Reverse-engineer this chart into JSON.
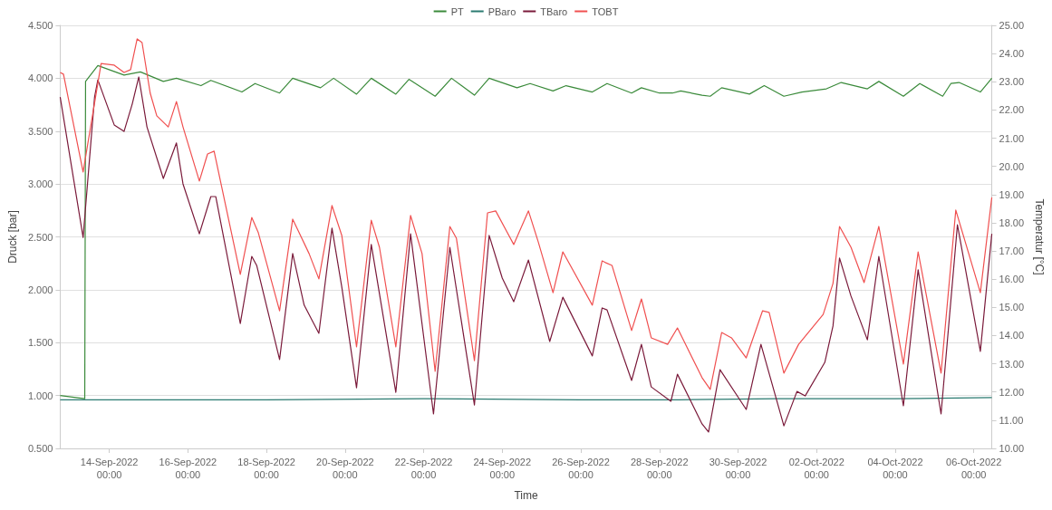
{
  "chart_data": {
    "type": "line",
    "xlabel": "Time",
    "ylabel": "Druck [bar]",
    "y2label": "Temperatur [°C]",
    "legend": "top",
    "grid": "y",
    "marker": "none",
    "line_style": "solid",
    "xlim": [
      "2022-09-12T18:00",
      "2022-10-06T11:00"
    ],
    "xticks": [
      {
        "value": "2022-09-14T00:00",
        "label": "14-Sep-2022 00:00"
      },
      {
        "value": "2022-09-16T00:00",
        "label": "16-Sep-2022 00:00"
      },
      {
        "value": "2022-09-18T00:00",
        "label": "18-Sep-2022 00:00"
      },
      {
        "value": "2022-09-20T00:00",
        "label": "20-Sep-2022 00:00"
      },
      {
        "value": "2022-09-22T00:00",
        "label": "22-Sep-2022 00:00"
      },
      {
        "value": "2022-09-24T00:00",
        "label": "24-Sep-2022 00:00"
      },
      {
        "value": "2022-09-26T00:00",
        "label": "26-Sep-2022 00:00"
      },
      {
        "value": "2022-09-28T00:00",
        "label": "28-Sep-2022 00:00"
      },
      {
        "value": "2022-09-30T00:00",
        "label": "30-Sep-2022 00:00"
      },
      {
        "value": "2022-10-02T00:00",
        "label": "02-Oct-2022 00:00"
      },
      {
        "value": "2022-10-04T00:00",
        "label": "04-Oct-2022 00:00"
      },
      {
        "value": "2022-10-06T00:00",
        "label": "06-Oct-2022 00:00"
      }
    ],
    "ylim": [
      0.5,
      4.5
    ],
    "yticks": [
      {
        "value": 0.5,
        "label": "0.500"
      },
      {
        "value": 1,
        "label": "1.000"
      },
      {
        "value": 1.5,
        "label": "1.500"
      },
      {
        "value": 2,
        "label": "2.000"
      },
      {
        "value": 2.5,
        "label": "2.500"
      },
      {
        "value": 3,
        "label": "3.000"
      },
      {
        "value": 3.5,
        "label": "3.500"
      },
      {
        "value": 4,
        "label": "4.000"
      },
      {
        "value": 4.5,
        "label": "4.500"
      }
    ],
    "y2lim": [
      10,
      25
    ],
    "y2ticks": [
      {
        "value": 10,
        "label": "10.00"
      },
      {
        "value": 11,
        "label": "11.00"
      },
      {
        "value": 12,
        "label": "12.00"
      },
      {
        "value": 13,
        "label": "13.00"
      },
      {
        "value": 14,
        "label": "14.00"
      },
      {
        "value": 15,
        "label": "15.00"
      },
      {
        "value": 16,
        "label": "16.00"
      },
      {
        "value": 17,
        "label": "17.00"
      },
      {
        "value": 18,
        "label": "18.00"
      },
      {
        "value": 19,
        "label": "19.00"
      },
      {
        "value": 20,
        "label": "20.00"
      },
      {
        "value": 21,
        "label": "21.00"
      },
      {
        "value": 22,
        "label": "22.00"
      },
      {
        "value": 23,
        "label": "23.00"
      },
      {
        "value": 24,
        "label": "24.00"
      },
      {
        "value": 25,
        "label": "25.00"
      }
    ],
    "series": [
      {
        "name": "PT",
        "color": "#3a8a3a",
        "x": [
          "2022-09-12T18:00",
          "2022-09-13T09:00",
          "2022-09-13T09:30",
          "2022-09-13T17:00",
          "2022-09-14T09:00",
          "2022-09-14T19:00",
          "2022-09-15T09:00",
          "2022-09-15T17:00",
          "2022-09-16T08:00",
          "2022-09-16T14:00",
          "2022-09-17T09:00",
          "2022-09-17T17:00",
          "2022-09-18T08:00",
          "2022-09-18T16:00",
          "2022-09-19T09:00",
          "2022-09-19T17:00",
          "2022-09-20T07:00",
          "2022-09-20T16:00",
          "2022-09-21T07:00",
          "2022-09-21T15:00",
          "2022-09-22T07:00",
          "2022-09-22T17:00",
          "2022-09-23T07:00",
          "2022-09-23T16:00",
          "2022-09-24T09:00",
          "2022-09-24T17:00",
          "2022-09-25T07:00",
          "2022-09-25T15:00",
          "2022-09-26T07:00",
          "2022-09-26T16:00",
          "2022-09-27T07:00",
          "2022-09-27T13:00",
          "2022-09-28T00:00",
          "2022-09-28T08:00",
          "2022-09-28T13:00",
          "2022-09-29T02:00",
          "2022-09-29T07:00",
          "2022-09-29T14:00",
          "2022-09-30T07:00",
          "2022-09-30T16:00",
          "2022-10-01T04:00",
          "2022-10-01T15:00",
          "2022-10-02T06:00",
          "2022-10-02T15:00",
          "2022-10-03T07:00",
          "2022-10-03T14:00",
          "2022-10-04T05:00",
          "2022-10-04T15:00",
          "2022-10-05T05:00",
          "2022-10-05T10:00",
          "2022-10-05T15:00",
          "2022-10-06T04:00",
          "2022-10-06T11:00"
        ],
        "values": [
          1.0,
          0.97,
          3.97,
          4.12,
          4.03,
          4.06,
          3.97,
          4.0,
          3.93,
          3.98,
          3.87,
          3.95,
          3.86,
          4.0,
          3.91,
          4.0,
          3.85,
          4.0,
          3.85,
          3.99,
          3.83,
          4.0,
          3.84,
          4.0,
          3.91,
          3.95,
          3.88,
          3.93,
          3.87,
          3.95,
          3.86,
          3.91,
          3.86,
          3.86,
          3.88,
          3.84,
          3.83,
          3.91,
          3.85,
          3.93,
          3.83,
          3.87,
          3.9,
          3.96,
          3.9,
          3.97,
          3.83,
          3.95,
          3.83,
          3.95,
          3.96,
          3.87,
          4.0
        ]
      },
      {
        "name": "PBaro",
        "color": "#2a7a70",
        "x": [
          "2022-09-12T18:00",
          "2022-09-14T18:00",
          "2022-09-18T00:00",
          "2022-09-22T00:00",
          "2022-09-26T00:00",
          "2022-09-28T12:00",
          "2022-10-01T00:00",
          "2022-10-04T00:00",
          "2022-10-06T11:00"
        ],
        "values": [
          0.96,
          0.96,
          0.96,
          0.97,
          0.96,
          0.96,
          0.97,
          0.97,
          0.98
        ]
      },
      {
        "name": "TBaro",
        "color": "#7a1a3a",
        "axis": "y2",
        "x": [
          "2022-09-12T18:00",
          "2022-09-13T08:00",
          "2022-09-13T15:00",
          "2022-09-13T17:00",
          "2022-09-14T03:00",
          "2022-09-14T09:00",
          "2022-09-14T14:00",
          "2022-09-14T18:00",
          "2022-09-14T23:00",
          "2022-09-15T09:00",
          "2022-09-15T17:00",
          "2022-09-15T21:00",
          "2022-09-16T07:00",
          "2022-09-16T14:00",
          "2022-09-16T17:00",
          "2022-09-17T08:00",
          "2022-09-17T15:00",
          "2022-09-17T18:00",
          "2022-09-18T08:00",
          "2022-09-18T16:00",
          "2022-09-18T23:00",
          "2022-09-19T08:00",
          "2022-09-19T16:00",
          "2022-09-19T22:00",
          "2022-09-20T07:00",
          "2022-09-20T16:00",
          "2022-09-21T07:00",
          "2022-09-21T16:00",
          "2022-09-22T06:00",
          "2022-09-22T16:00",
          "2022-09-23T07:00",
          "2022-09-23T16:00",
          "2022-09-24T00:00",
          "2022-09-24T07:00",
          "2022-09-24T16:00",
          "2022-09-25T05:00",
          "2022-09-25T13:00",
          "2022-09-26T07:00",
          "2022-09-26T13:00",
          "2022-09-26T16:00",
          "2022-09-27T07:00",
          "2022-09-27T13:00",
          "2022-09-27T19:00",
          "2022-09-28T07:00",
          "2022-09-28T11:00",
          "2022-09-29T02:00",
          "2022-09-29T06:00",
          "2022-09-29T13:00",
          "2022-09-30T05:00",
          "2022-09-30T14:00",
          "2022-10-01T04:00",
          "2022-10-01T12:00",
          "2022-10-01T17:00",
          "2022-10-02T05:00",
          "2022-10-02T10:00",
          "2022-10-02T14:00",
          "2022-10-02T21:00",
          "2022-10-03T07:00",
          "2022-10-03T14:00",
          "2022-10-04T05:00",
          "2022-10-04T14:00",
          "2022-10-05T04:00",
          "2022-10-05T14:00",
          "2022-10-06T04:00",
          "2022-10-06T11:00"
        ],
        "values": [
          22.46,
          17.48,
          22.46,
          23.07,
          21.47,
          21.24,
          22.21,
          23.17,
          21.4,
          19.57,
          20.83,
          19.38,
          17.61,
          18.93,
          18.93,
          14.43,
          16.81,
          16.49,
          13.15,
          16.91,
          15.08,
          14.08,
          17.81,
          15.72,
          12.15,
          17.23,
          11.99,
          17.61,
          11.22,
          17.13,
          11.54,
          17.55,
          16.04,
          15.2,
          16.68,
          13.79,
          15.36,
          13.28,
          14.98,
          14.91,
          12.41,
          13.69,
          12.18,
          11.67,
          12.63,
          10.87,
          10.58,
          12.79,
          11.38,
          13.69,
          10.8,
          12.02,
          11.86,
          13.05,
          14.34,
          16.75,
          15.4,
          13.85,
          16.81,
          11.51,
          16.33,
          11.22,
          17.93,
          13.44,
          17.61
        ]
      },
      {
        "name": "TOBT",
        "color": "#f05050",
        "axis": "y2",
        "x": [
          "2022-09-12T18:00",
          "2022-09-12T20:00",
          "2022-09-13T08:00",
          "2022-09-13T19:00",
          "2022-09-14T03:00",
          "2022-09-14T09:00",
          "2022-09-14T13:00",
          "2022-09-14T17:00",
          "2022-09-14T20:00",
          "2022-09-15T01:00",
          "2022-09-15T05:00",
          "2022-09-15T12:00",
          "2022-09-15T17:00",
          "2022-09-15T21:00",
          "2022-09-16T07:00",
          "2022-09-16T12:00",
          "2022-09-16T16:00",
          "2022-09-17T08:00",
          "2022-09-17T15:00",
          "2022-09-17T19:00",
          "2022-09-18T08:00",
          "2022-09-18T16:00",
          "2022-09-19T02:00",
          "2022-09-19T08:00",
          "2022-09-19T16:00",
          "2022-09-19T22:00",
          "2022-09-20T07:00",
          "2022-09-20T16:00",
          "2022-09-20T21:00",
          "2022-09-21T07:00",
          "2022-09-21T16:00",
          "2022-09-21T23:00",
          "2022-09-22T07:00",
          "2022-09-22T16:00",
          "2022-09-22T20:00",
          "2022-09-23T07:00",
          "2022-09-23T15:00",
          "2022-09-23T20:00",
          "2022-09-24T07:00",
          "2022-09-24T16:00",
          "2022-09-24T22:00",
          "2022-09-25T07:00",
          "2022-09-25T13:00",
          "2022-09-26T07:00",
          "2022-09-26T13:00",
          "2022-09-26T15:00",
          "2022-09-26T19:00",
          "2022-09-27T07:00",
          "2022-09-27T13:00",
          "2022-09-27T19:00",
          "2022-09-28T05:00",
          "2022-09-28T11:00",
          "2022-09-29T02:00",
          "2022-09-29T07:00",
          "2022-09-29T14:00",
          "2022-09-29T20:00",
          "2022-09-30T05:00",
          "2022-09-30T15:00",
          "2022-09-30T19:00",
          "2022-10-01T04:00",
          "2022-10-01T13:00",
          "2022-10-02T04:00",
          "2022-10-02T10:00",
          "2022-10-02T14:00",
          "2022-10-02T21:00",
          "2022-10-03T05:00",
          "2022-10-03T14:00",
          "2022-10-04T05:00",
          "2022-10-04T14:00",
          "2022-10-05T04:00",
          "2022-10-05T13:00",
          "2022-10-06T04:00",
          "2022-10-06T11:00"
        ],
        "values": [
          23.33,
          23.27,
          19.8,
          23.65,
          23.59,
          23.33,
          23.43,
          24.52,
          24.39,
          22.59,
          21.79,
          21.4,
          22.3,
          21.4,
          19.48,
          20.44,
          20.54,
          16.17,
          18.19,
          17.65,
          14.88,
          18.13,
          16.91,
          16.01,
          18.61,
          17.55,
          13.6,
          18.09,
          17.13,
          13.6,
          18.26,
          16.91,
          12.73,
          17.87,
          17.45,
          13.11,
          18.35,
          18.42,
          17.23,
          18.42,
          17.32,
          15.52,
          16.97,
          15.08,
          16.65,
          16.59,
          16.49,
          14.18,
          15.3,
          13.92,
          13.69,
          14.27,
          12.51,
          12.09,
          14.11,
          13.92,
          13.21,
          14.88,
          14.82,
          12.67,
          13.69,
          14.75,
          15.85,
          17.87,
          17.13,
          15.88,
          17.87,
          12.99,
          16.97,
          12.67,
          18.45,
          15.52,
          18.9
        ]
      }
    ]
  }
}
